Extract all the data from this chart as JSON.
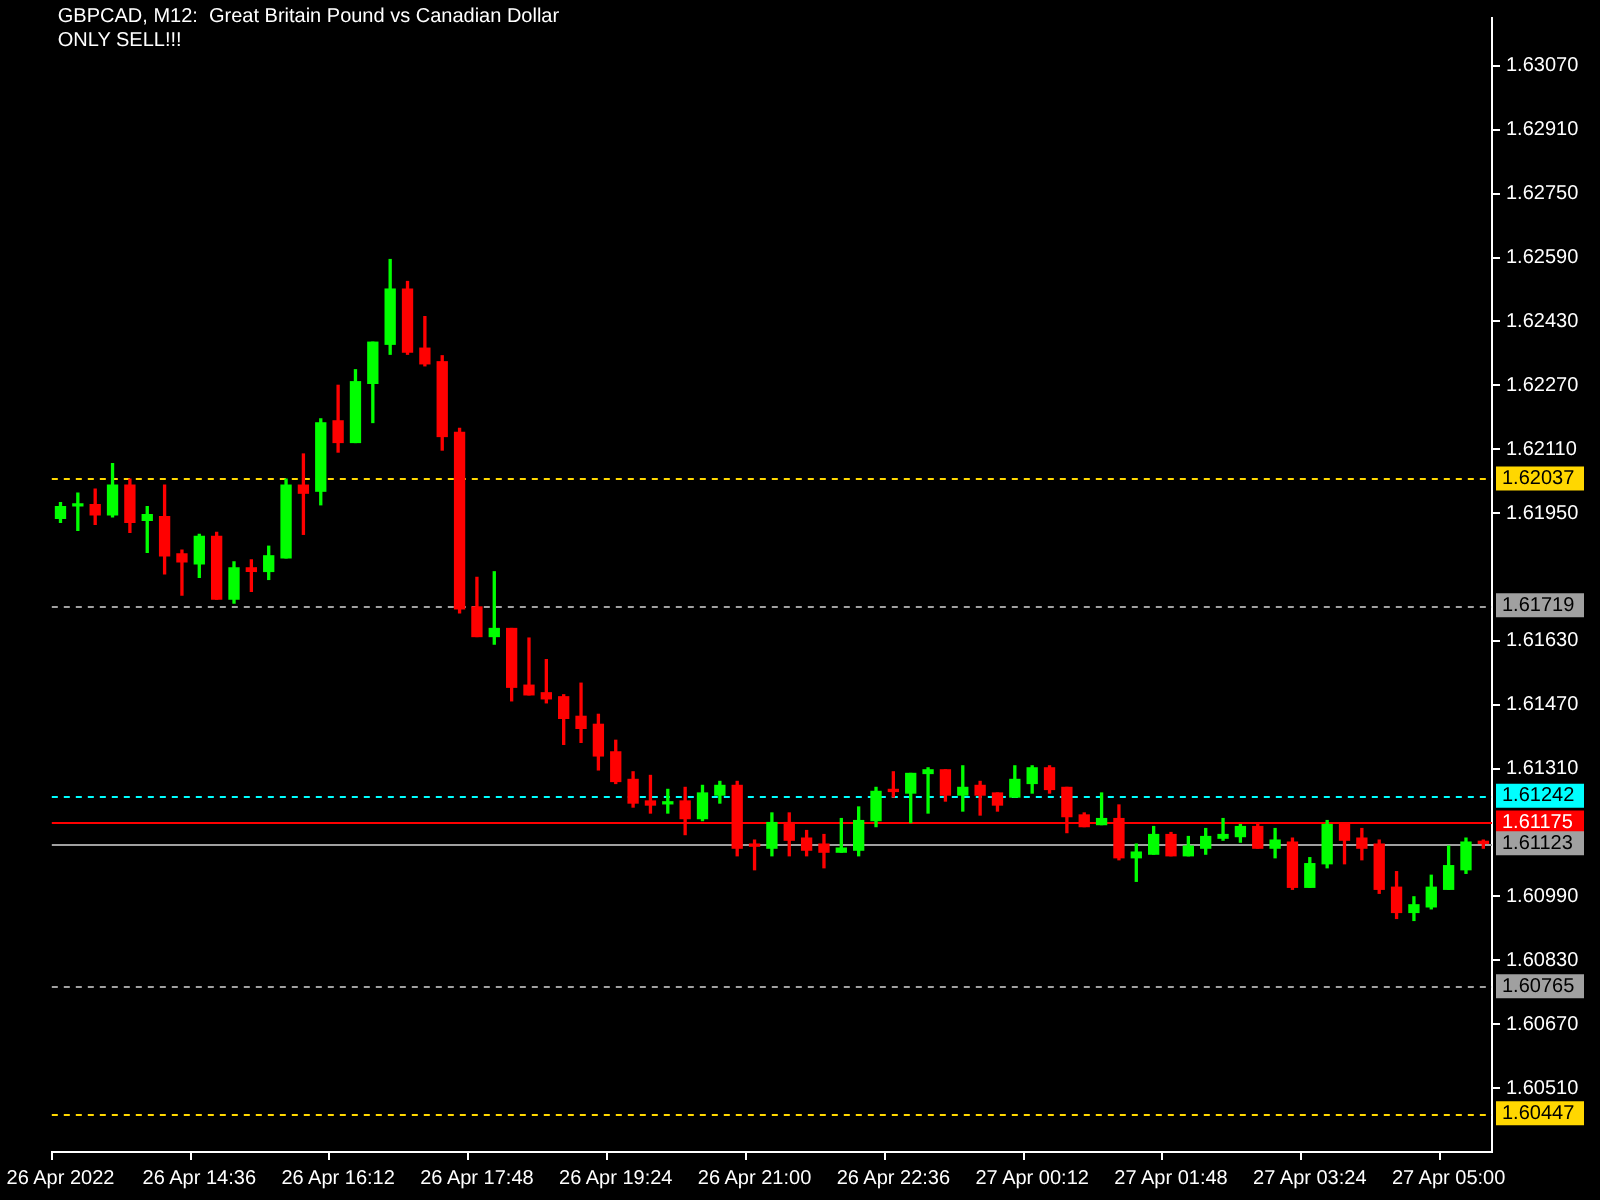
{
  "chart_data": {
    "type": "candlestick",
    "title": "GBPCAD, M12:  Great Britain Pound vs Canadian Dollar",
    "subtitle": "ONLY SELL!!!",
    "categories": [
      "26 Apr 2022",
      null,
      null,
      null,
      null,
      null,
      null,
      null,
      "26 Apr 14:36",
      null,
      null,
      null,
      null,
      null,
      null,
      null,
      "26 Apr 16:12",
      null,
      null,
      null,
      null,
      null,
      null,
      null,
      "26 Apr 17:48",
      null,
      null,
      null,
      null,
      null,
      null,
      null,
      "26 Apr 19:24",
      null,
      null,
      null,
      null,
      null,
      null,
      null,
      "26 Apr 21:00",
      null,
      null,
      null,
      null,
      null,
      null,
      null,
      "26 Apr 22:36",
      null,
      null,
      null,
      null,
      null,
      null,
      null,
      "27 Apr 00:12",
      null,
      null,
      null,
      null,
      null,
      null,
      null,
      "27 Apr 01:48",
      null,
      null,
      null,
      null,
      null,
      null,
      null,
      "27 Apr 03:24",
      null,
      null,
      null,
      null,
      null,
      null,
      null,
      "27 Apr 05:00",
      null,
      null
    ],
    "ohlc": [
      [
        1.61937,
        1.61976,
        1.61927,
        1.61966
      ],
      [
        1.61968,
        1.62,
        1.61907,
        1.61971
      ],
      [
        1.61971,
        1.6201,
        1.61922,
        1.61946
      ],
      [
        1.61946,
        1.62074,
        1.61941,
        1.6202
      ],
      [
        1.6202,
        1.62035,
        1.61902,
        1.61927
      ],
      [
        1.61932,
        1.61966,
        1.61852,
        1.61946
      ],
      [
        1.61941,
        1.6202,
        1.61798,
        1.61843
      ],
      [
        1.61848,
        1.61857,
        1.61745,
        1.61828
      ],
      [
        1.61823,
        1.61897,
        1.61789,
        1.61892
      ],
      [
        1.61892,
        1.61902,
        1.61735,
        1.61735
      ],
      [
        1.61735,
        1.61828,
        1.61725,
        1.61813
      ],
      [
        1.61813,
        1.61833,
        1.61754,
        1.61804
      ],
      [
        1.61804,
        1.61867,
        1.61784,
        1.61843
      ],
      [
        1.61838,
        1.62035,
        1.61838,
        1.6202
      ],
      [
        1.6202,
        1.62098,
        1.61897,
        1.62
      ],
      [
        1.62005,
        1.62186,
        1.61971,
        1.62176
      ],
      [
        1.62181,
        1.6227,
        1.62103,
        1.62127
      ],
      [
        1.62127,
        1.62309,
        1.62127,
        1.62279
      ],
      [
        1.62275,
        1.62378,
        1.62177,
        1.62378
      ],
      [
        1.62373,
        1.62585,
        1.62348,
        1.62511
      ],
      [
        1.62511,
        1.6253,
        1.62348,
        1.62353
      ],
      [
        1.62363,
        1.62442,
        1.62319,
        1.62324
      ],
      [
        1.62329,
        1.62344,
        1.62108,
        1.62142
      ],
      [
        1.62152,
        1.62162,
        1.617,
        1.6171
      ],
      [
        1.61715,
        1.61789,
        1.61641,
        1.61641
      ],
      [
        1.61641,
        1.61803,
        1.61622,
        1.61661
      ],
      [
        1.61661,
        1.61661,
        1.6148,
        1.61514
      ],
      [
        1.61519,
        1.61637,
        1.61495,
        1.61495
      ],
      [
        1.615,
        1.61583,
        1.61475,
        1.61485
      ],
      [
        1.6149,
        1.61495,
        1.61371,
        1.61436
      ],
      [
        1.61441,
        1.61524,
        1.61376,
        1.61411
      ],
      [
        1.61421,
        1.61446,
        1.61307,
        1.61342
      ],
      [
        1.61352,
        1.61381,
        1.61273,
        1.61278
      ],
      [
        1.61283,
        1.61302,
        1.61214,
        1.61224
      ],
      [
        1.61229,
        1.61293,
        1.61199,
        1.61219
      ],
      [
        1.61222,
        1.61258,
        1.61199,
        1.61224
      ],
      [
        1.61229,
        1.61263,
        1.61145,
        1.61185
      ],
      [
        1.61185,
        1.61268,
        1.6118,
        1.61249
      ],
      [
        1.61244,
        1.61278,
        1.61224,
        1.61268
      ],
      [
        1.61268,
        1.61278,
        1.61092,
        1.61111
      ],
      [
        1.61121,
        1.61131,
        1.61057,
        1.61116
      ],
      [
        1.61111,
        1.61199,
        1.61092,
        1.61175
      ],
      [
        1.61175,
        1.61199,
        1.61092,
        1.61131
      ],
      [
        1.61136,
        1.61155,
        1.61092,
        1.61106
      ],
      [
        1.61121,
        1.61145,
        1.61062,
        1.61101
      ],
      [
        1.61101,
        1.61185,
        1.61101,
        1.61111
      ],
      [
        1.61106,
        1.61214,
        1.61092,
        1.6118
      ],
      [
        1.6118,
        1.61263,
        1.61165,
        1.61253
      ],
      [
        1.61258,
        1.61302,
        1.61239,
        1.61253
      ],
      [
        1.61249,
        1.61298,
        1.61175,
        1.61298
      ],
      [
        1.61298,
        1.61312,
        1.61199,
        1.61307
      ],
      [
        1.61307,
        1.61307,
        1.61229,
        1.61244
      ],
      [
        1.61244,
        1.61317,
        1.61204,
        1.61263
      ],
      [
        1.61268,
        1.61278,
        1.61194,
        1.61244
      ],
      [
        1.61249,
        1.61249,
        1.61204,
        1.61219
      ],
      [
        1.61239,
        1.61317,
        1.61239,
        1.61283
      ],
      [
        1.61273,
        1.61317,
        1.61249,
        1.61312
      ],
      [
        1.61312,
        1.61317,
        1.61249,
        1.61258
      ],
      [
        1.61263,
        1.61263,
        1.6115,
        1.6119
      ],
      [
        1.61194,
        1.61199,
        1.61165,
        1.61165
      ],
      [
        1.6117,
        1.61249,
        1.6117,
        1.61185
      ],
      [
        1.61185,
        1.61219,
        1.61082,
        1.61087
      ],
      [
        1.61087,
        1.61121,
        1.61028,
        1.61101
      ],
      [
        1.61096,
        1.61165,
        1.61096,
        1.61145
      ],
      [
        1.61145,
        1.6115,
        1.61092,
        1.61092
      ],
      [
        1.61092,
        1.6114,
        1.61092,
        1.61116
      ],
      [
        1.61111,
        1.6116,
        1.61096,
        1.6114
      ],
      [
        1.61136,
        1.61185,
        1.61131,
        1.61145
      ],
      [
        1.6114,
        1.6117,
        1.61126,
        1.61165
      ],
      [
        1.61165,
        1.6117,
        1.61111,
        1.61111
      ],
      [
        1.61111,
        1.6116,
        1.61087,
        1.61131
      ],
      [
        1.61126,
        1.61136,
        1.61008,
        1.61013
      ],
      [
        1.61013,
        1.61087,
        1.61013,
        1.61072
      ],
      [
        1.61072,
        1.6118,
        1.61062,
        1.6117
      ],
      [
        1.6117,
        1.6117,
        1.61072,
        1.61131
      ],
      [
        1.61136,
        1.6116,
        1.61082,
        1.61111
      ],
      [
        1.61121,
        1.61131,
        1.60998,
        1.61008
      ],
      [
        1.61013,
        1.61052,
        1.60935,
        1.6095
      ],
      [
        1.6095,
        1.60989,
        1.6093,
        1.60969
      ],
      [
        1.60964,
        1.61043,
        1.60959,
        1.61013
      ],
      [
        1.61008,
        1.61116,
        1.61008,
        1.61067
      ],
      [
        1.61057,
        1.61136,
        1.61048,
        1.61126
      ],
      [
        1.61126,
        1.61131,
        1.61111,
        1.61123
      ]
    ],
    "colors": [
      "#00ff00",
      "#00ff00",
      "#ff0000",
      "#00ff00",
      "#ff0000",
      "#00ff00",
      "#ff0000",
      "#ff0000",
      "#00ff00",
      "#ff0000",
      "#00ff00",
      "#ff0000",
      "#00ff00",
      "#00ff00",
      "#ff0000",
      "#00ff00",
      "#ff0000",
      "#00ff00",
      "#00ff00",
      "#00ff00",
      "#ff0000",
      "#ff0000",
      "#ff0000",
      "#ff0000",
      "#ff0000",
      "#00ff00",
      "#ff0000",
      "#ff0000",
      "#ff0000",
      "#ff0000",
      "#ff0000",
      "#ff0000",
      "#ff0000",
      "#ff0000",
      "#ff0000",
      "#00ff00",
      "#ff0000",
      "#00ff00",
      "#00ff00",
      "#ff0000",
      "#ff0000",
      "#00ff00",
      "#ff0000",
      "#ff0000",
      "#ff0000",
      "#00ff00",
      "#00ff00",
      "#00ff00",
      "#ff0000",
      "#00ff00",
      "#00ff00",
      "#ff0000",
      "#00ff00",
      "#ff0000",
      "#ff0000",
      "#00ff00",
      "#00ff00",
      "#ff0000",
      "#ff0000",
      "#ff0000",
      "#00ff00",
      "#ff0000",
      "#00ff00",
      "#00ff00",
      "#ff0000",
      "#00ff00",
      "#00ff00",
      "#00ff00",
      "#00ff00",
      "#ff0000",
      "#00ff00",
      "#ff0000",
      "#00ff00",
      "#00ff00",
      "#ff0000",
      "#ff0000",
      "#ff0000",
      "#ff0000",
      "#00ff00",
      "#00ff00",
      "#00ff00",
      "#00ff00",
      "#ff0000"
    ],
    "ylim": [
      1.6035,
      1.6319
    ],
    "yticks": [
      {
        "value": 1.6307,
        "label": "1.63070"
      },
      {
        "value": 1.6291,
        "label": "1.62910"
      },
      {
        "value": 1.6275,
        "label": "1.62750"
      },
      {
        "value": 1.6259,
        "label": "1.62590"
      },
      {
        "value": 1.6243,
        "label": "1.62430"
      },
      {
        "value": 1.6227,
        "label": "1.62270"
      },
      {
        "value": 1.6211,
        "label": "1.62110"
      },
      {
        "value": 1.6195,
        "label": "1.61950"
      },
      {
        "value": 1.6163,
        "label": "1.61630"
      },
      {
        "value": 1.6147,
        "label": "1.61470"
      },
      {
        "value": 1.6131,
        "label": "1.61310"
      },
      {
        "value": 1.6099,
        "label": "1.60990"
      },
      {
        "value": 1.6083,
        "label": "1.60830"
      },
      {
        "value": 1.6067,
        "label": "1.60670"
      },
      {
        "value": 1.6051,
        "label": "1.60510"
      }
    ],
    "ref_lines": [
      {
        "axis": "y",
        "value": 1.62037,
        "label": "1.62037",
        "color": "#ffd700",
        "line_style": "dashed"
      },
      {
        "axis": "y",
        "value": 1.61719,
        "label": "1.61719",
        "color": "#a0a0a0",
        "line_style": "dashed"
      },
      {
        "axis": "y",
        "value": 1.61242,
        "label": "1.61242",
        "color": "#00ffff",
        "line_style": "dashed"
      },
      {
        "axis": "y",
        "value": 1.61175,
        "label": "1.61175",
        "color": "#ff0000",
        "line_style": "solid"
      },
      {
        "axis": "y",
        "value": 1.61123,
        "label": "1.61123",
        "color": "#a0a0a0",
        "line_style": "solid"
      },
      {
        "axis": "y",
        "value": 1.60765,
        "label": "1.60765",
        "color": "#a0a0a0",
        "line_style": "dashed"
      },
      {
        "axis": "y",
        "value": 1.60447,
        "label": "1.60447",
        "color": "#ffd700",
        "line_style": "dashed"
      }
    ]
  }
}
